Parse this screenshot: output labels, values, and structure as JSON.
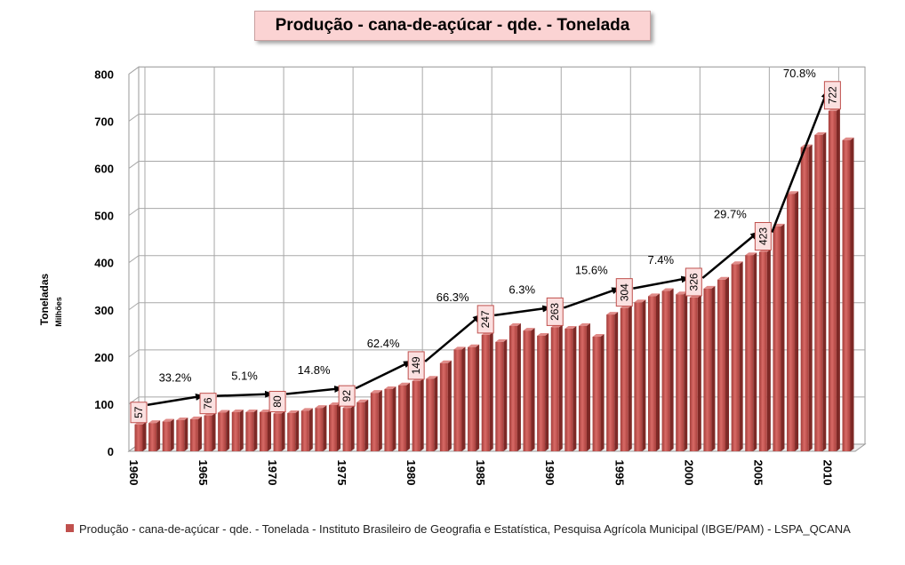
{
  "chart_data": {
    "type": "bar",
    "title": "Produção - cana-de-açúcar - qde. - Tonelada",
    "ylabel": "Toneladas",
    "ylabel_unit": "Milhões",
    "ylim": [
      0,
      800
    ],
    "yticks": [
      0,
      100,
      200,
      300,
      400,
      500,
      600,
      700,
      800
    ],
    "xticks": [
      1960,
      1965,
      1970,
      1975,
      1980,
      1985,
      1990,
      1995,
      2000,
      2005,
      2010
    ],
    "grid": true,
    "legend_placement": "bottom",
    "series": [
      {
        "name": "Produção - cana-de-açúcar - qde. - Tonelada - Instituto Brasileiro de Geografia e Estatística, Pesquisa Agrícola Municipal (IBGE/PAM) - LSPA_QCANA",
        "color": "#c0504d",
        "x": [
          1960,
          1961,
          1962,
          1963,
          1964,
          1965,
          1966,
          1967,
          1968,
          1969,
          1970,
          1971,
          1972,
          1973,
          1974,
          1975,
          1976,
          1977,
          1978,
          1979,
          1980,
          1981,
          1982,
          1983,
          1984,
          1985,
          1986,
          1987,
          1988,
          1989,
          1990,
          1991,
          1992,
          1993,
          1994,
          1995,
          1996,
          1997,
          1998,
          1999,
          2000,
          2001,
          2002,
          2003,
          2004,
          2005,
          2006,
          2007,
          2008,
          2009,
          2010,
          2011
        ],
        "values": [
          57,
          60,
          63,
          66,
          68,
          76,
          82,
          83,
          83,
          83,
          80,
          81,
          86,
          92,
          98,
          92,
          104,
          124,
          132,
          140,
          149,
          154,
          187,
          216,
          221,
          247,
          232,
          266,
          256,
          245,
          263,
          260,
          266,
          243,
          290,
          304,
          316,
          329,
          340,
          333,
          326,
          345,
          364,
          397,
          416,
          423,
          477,
          546,
          645,
          671,
          722,
          660
        ]
      }
    ],
    "data_labels": [
      {
        "year": 1960,
        "text": "57"
      },
      {
        "year": 1965,
        "text": "76"
      },
      {
        "year": 1970,
        "text": "80"
      },
      {
        "year": 1975,
        "text": "92"
      },
      {
        "year": 1980,
        "text": "149"
      },
      {
        "year": 1985,
        "text": "247"
      },
      {
        "year": 1990,
        "text": "263"
      },
      {
        "year": 1995,
        "text": "304"
      },
      {
        "year": 2000,
        "text": "326"
      },
      {
        "year": 2005,
        "text": "423"
      },
      {
        "year": 2010,
        "text": "722"
      }
    ],
    "growth_annotations": [
      {
        "from": 1960,
        "to": 1965,
        "text": "33.2%"
      },
      {
        "from": 1965,
        "to": 1970,
        "text": "5.1%"
      },
      {
        "from": 1970,
        "to": 1975,
        "text": "14.8%"
      },
      {
        "from": 1975,
        "to": 1980,
        "text": "62.4%"
      },
      {
        "from": 1980,
        "to": 1985,
        "text": "66.3%"
      },
      {
        "from": 1985,
        "to": 1990,
        "text": "6.3%"
      },
      {
        "from": 1990,
        "to": 1995,
        "text": "15.6%"
      },
      {
        "from": 1995,
        "to": 2000,
        "text": "7.4%"
      },
      {
        "from": 2000,
        "to": 2005,
        "text": "29.7%"
      },
      {
        "from": 2005,
        "to": 2010,
        "text": "70.8%"
      }
    ]
  }
}
